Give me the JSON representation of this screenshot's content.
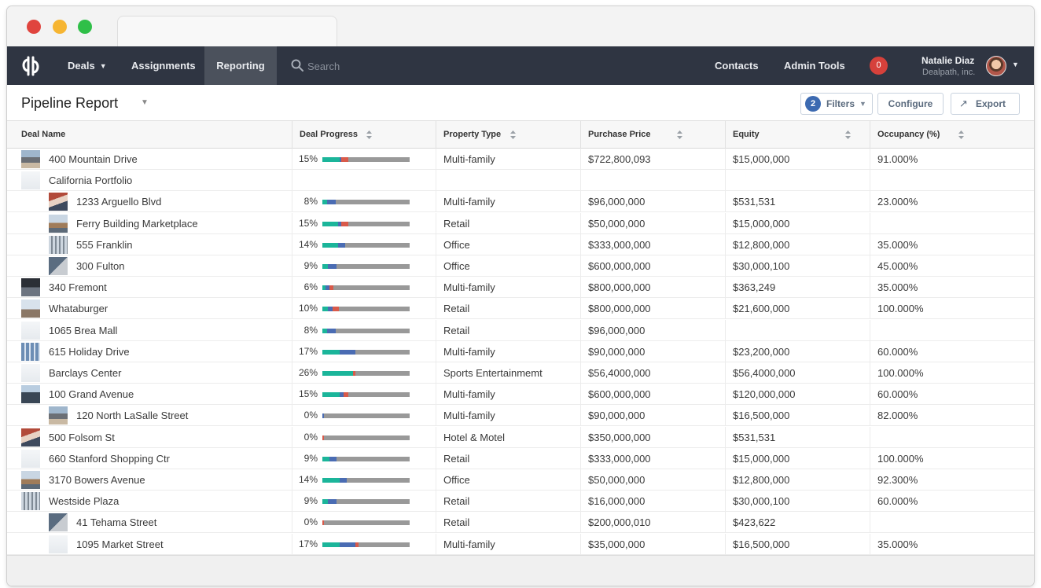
{
  "browser": {
    "traffic_lights": [
      "close",
      "minimize",
      "maximize"
    ]
  },
  "nav": {
    "items": [
      {
        "label": "Deals",
        "dropdown": true
      },
      {
        "label": "Assignments"
      },
      {
        "label": "Reporting",
        "active": true
      }
    ],
    "search_placeholder": "Search",
    "right_items": [
      {
        "label": "Contacts"
      },
      {
        "label": "Admin Tools"
      }
    ],
    "notification_count": "0",
    "user": {
      "name": "Natalie Diaz",
      "company": "Dealpath, inc."
    }
  },
  "page": {
    "title": "Pipeline Report",
    "filters_count": "2",
    "filters_label": "Filters",
    "configure_label": "Configure",
    "export_label": "Export"
  },
  "columns": [
    "Deal Name",
    "Deal Progress",
    "Property Type",
    "Purchase Price",
    "Equity",
    "Occupancy (%)"
  ],
  "colors": {
    "progress_teal": "#1bb59a",
    "progress_blue": "#4a6cb3",
    "progress_red": "#d95a4a",
    "progress_gray": "#999999",
    "nav_bg": "#2f3542"
  },
  "rows": [
    {
      "name": "400 Mountain Drive",
      "indent": false,
      "thumb": true,
      "progress": "15%",
      "bar": [
        {
          "c": "#1bb59a",
          "w": 0.2
        },
        {
          "c": "#4a6cb3",
          "w": 0.02
        },
        {
          "c": "#d95a4a",
          "w": 0.08
        }
      ],
      "type": "Multi-family",
      "price": "$722,800,093",
      "equity": "$15,000,000",
      "occupancy": "91.000%"
    },
    {
      "name": "California Portfolio",
      "indent": false,
      "thumb": "light",
      "group": true
    },
    {
      "name": "1233 Arguello Blvd",
      "indent": true,
      "thumb": true,
      "progress": "8%",
      "bar": [
        {
          "c": "#1bb59a",
          "w": 0.05
        },
        {
          "c": "#4a6cb3",
          "w": 0.1
        }
      ],
      "type": "Multi-family",
      "price": "$96,000,000",
      "equity": "$531,531",
      "occupancy": "23.000%"
    },
    {
      "name": "Ferry Building Marketplace",
      "indent": true,
      "thumb": true,
      "progress": "15%",
      "bar": [
        {
          "c": "#1bb59a",
          "w": 0.18
        },
        {
          "c": "#4a6cb3",
          "w": 0.04
        },
        {
          "c": "#d95a4a",
          "w": 0.08
        }
      ],
      "type": "Retail",
      "price": "$50,000,000",
      "equity": "$15,000,000",
      "occupancy": ""
    },
    {
      "name": "555 Franklin",
      "indent": true,
      "thumb": true,
      "progress": "14%",
      "bar": [
        {
          "c": "#1bb59a",
          "w": 0.18
        },
        {
          "c": "#4a6cb3",
          "w": 0.08
        }
      ],
      "type": "Office",
      "price": "$333,000,000",
      "equity": "$12,800,000",
      "occupancy": "35.000%"
    },
    {
      "name": "300 Fulton",
      "indent": true,
      "thumb": true,
      "progress": "9%",
      "bar": [
        {
          "c": "#1bb59a",
          "w": 0.06
        },
        {
          "c": "#4a6cb3",
          "w": 0.1
        }
      ],
      "type": "Office",
      "price": "$600,000,000",
      "equity": "$30,000,100",
      "occupancy": "45.000%"
    },
    {
      "name": "340 Fremont",
      "indent": false,
      "thumb": true,
      "progress": "6%",
      "bar": [
        {
          "c": "#1bb59a",
          "w": 0.04
        },
        {
          "c": "#4a6cb3",
          "w": 0.04
        },
        {
          "c": "#d95a4a",
          "w": 0.05
        }
      ],
      "type": "Multi-family",
      "price": "$800,000,000",
      "equity": "$363,249",
      "occupancy": "35.000%"
    },
    {
      "name": "Whataburger",
      "indent": false,
      "thumb": true,
      "progress": "10%",
      "bar": [
        {
          "c": "#1bb59a",
          "w": 0.06
        },
        {
          "c": "#4a6cb3",
          "w": 0.06
        },
        {
          "c": "#d95a4a",
          "w": 0.07
        }
      ],
      "type": "Retail",
      "price": "$800,000,000",
      "equity": "$21,600,000",
      "occupancy": "100.000%"
    },
    {
      "name": "1065 Brea Mall",
      "indent": false,
      "thumb": "light",
      "progress": "8%",
      "bar": [
        {
          "c": "#1bb59a",
          "w": 0.05
        },
        {
          "c": "#4a6cb3",
          "w": 0.1
        }
      ],
      "type": "Retail",
      "price": "$96,000,000",
      "equity": "",
      "occupancy": ""
    },
    {
      "name": "615 Holiday Drive",
      "indent": false,
      "thumb": true,
      "progress": "17%",
      "bar": [
        {
          "c": "#1bb59a",
          "w": 0.2
        },
        {
          "c": "#4a6cb3",
          "w": 0.18
        }
      ],
      "type": "Multi-family",
      "price": "$90,000,000",
      "equity": "$23,200,000",
      "occupancy": "60.000%"
    },
    {
      "name": "Barclays Center",
      "indent": false,
      "thumb": "light",
      "progress": "26%",
      "bar": [
        {
          "c": "#1bb59a",
          "w": 0.35
        },
        {
          "c": "#d95a4a",
          "w": 0.03
        }
      ],
      "type": "Sports Entertainmemt",
      "price": "$56,4000,000",
      "equity": "$56,4000,000",
      "occupancy": "100.000%"
    },
    {
      "name": "100 Grand Avenue",
      "indent": false,
      "thumb": true,
      "progress": "15%",
      "bar": [
        {
          "c": "#1bb59a",
          "w": 0.2
        },
        {
          "c": "#4a6cb3",
          "w": 0.04
        },
        {
          "c": "#d95a4a",
          "w": 0.06
        }
      ],
      "type": "Multi-family",
      "price": "$600,000,000",
      "equity": "$120,000,000",
      "occupancy": "60.000%"
    },
    {
      "name": "120 North LaSalle Street",
      "indent": true,
      "thumb": true,
      "progress": "0%",
      "bar": [
        {
          "c": "#4a6cb3",
          "w": 0.02
        }
      ],
      "type": "Multi-family",
      "price": "$90,000,000",
      "equity": "$16,500,000",
      "occupancy": "82.000%"
    },
    {
      "name": "500 Folsom St",
      "indent": false,
      "thumb": true,
      "progress": "0%",
      "bar": [
        {
          "c": "#d95a4a",
          "w": 0.02
        }
      ],
      "type": "Hotel & Motel",
      "price": "$350,000,000",
      "equity": "$531,531",
      "occupancy": ""
    },
    {
      "name": "660 Stanford Shopping Ctr",
      "indent": false,
      "thumb": "light",
      "progress": "9%",
      "bar": [
        {
          "c": "#1bb59a",
          "w": 0.08
        },
        {
          "c": "#4a6cb3",
          "w": 0.08
        }
      ],
      "type": "Retail",
      "price": "$333,000,000",
      "equity": "$15,000,000",
      "occupancy": "100.000%"
    },
    {
      "name": "3170 Bowers Avenue",
      "indent": false,
      "thumb": true,
      "progress": "14%",
      "bar": [
        {
          "c": "#1bb59a",
          "w": 0.2
        },
        {
          "c": "#4a6cb3",
          "w": 0.08
        }
      ],
      "type": "Office",
      "price": "$50,000,000",
      "equity": "$12,800,000",
      "occupancy": "92.300%"
    },
    {
      "name": "Westside Plaza",
      "indent": false,
      "thumb": true,
      "progress": "9%",
      "bar": [
        {
          "c": "#1bb59a",
          "w": 0.06
        },
        {
          "c": "#4a6cb3",
          "w": 0.1
        }
      ],
      "type": "Retail",
      "price": "$16,000,000",
      "equity": "$30,000,100",
      "occupancy": "60.000%"
    },
    {
      "name": "41 Tehama Street",
      "indent": true,
      "thumb": true,
      "progress": "0%",
      "bar": [
        {
          "c": "#d95a4a",
          "w": 0.02
        }
      ],
      "type": "Retail",
      "price": "$200,000,010",
      "equity": "$423,622",
      "occupancy": ""
    },
    {
      "name": "1095 Market Street",
      "indent": true,
      "thumb": "light",
      "progress": "17%",
      "bar": [
        {
          "c": "#1bb59a",
          "w": 0.2
        },
        {
          "c": "#4a6cb3",
          "w": 0.18
        },
        {
          "c": "#d95a4a",
          "w": 0.03
        }
      ],
      "type": "Multi-family",
      "price": "$35,000,000",
      "equity": "$16,500,000",
      "occupancy": "35.000%"
    }
  ]
}
